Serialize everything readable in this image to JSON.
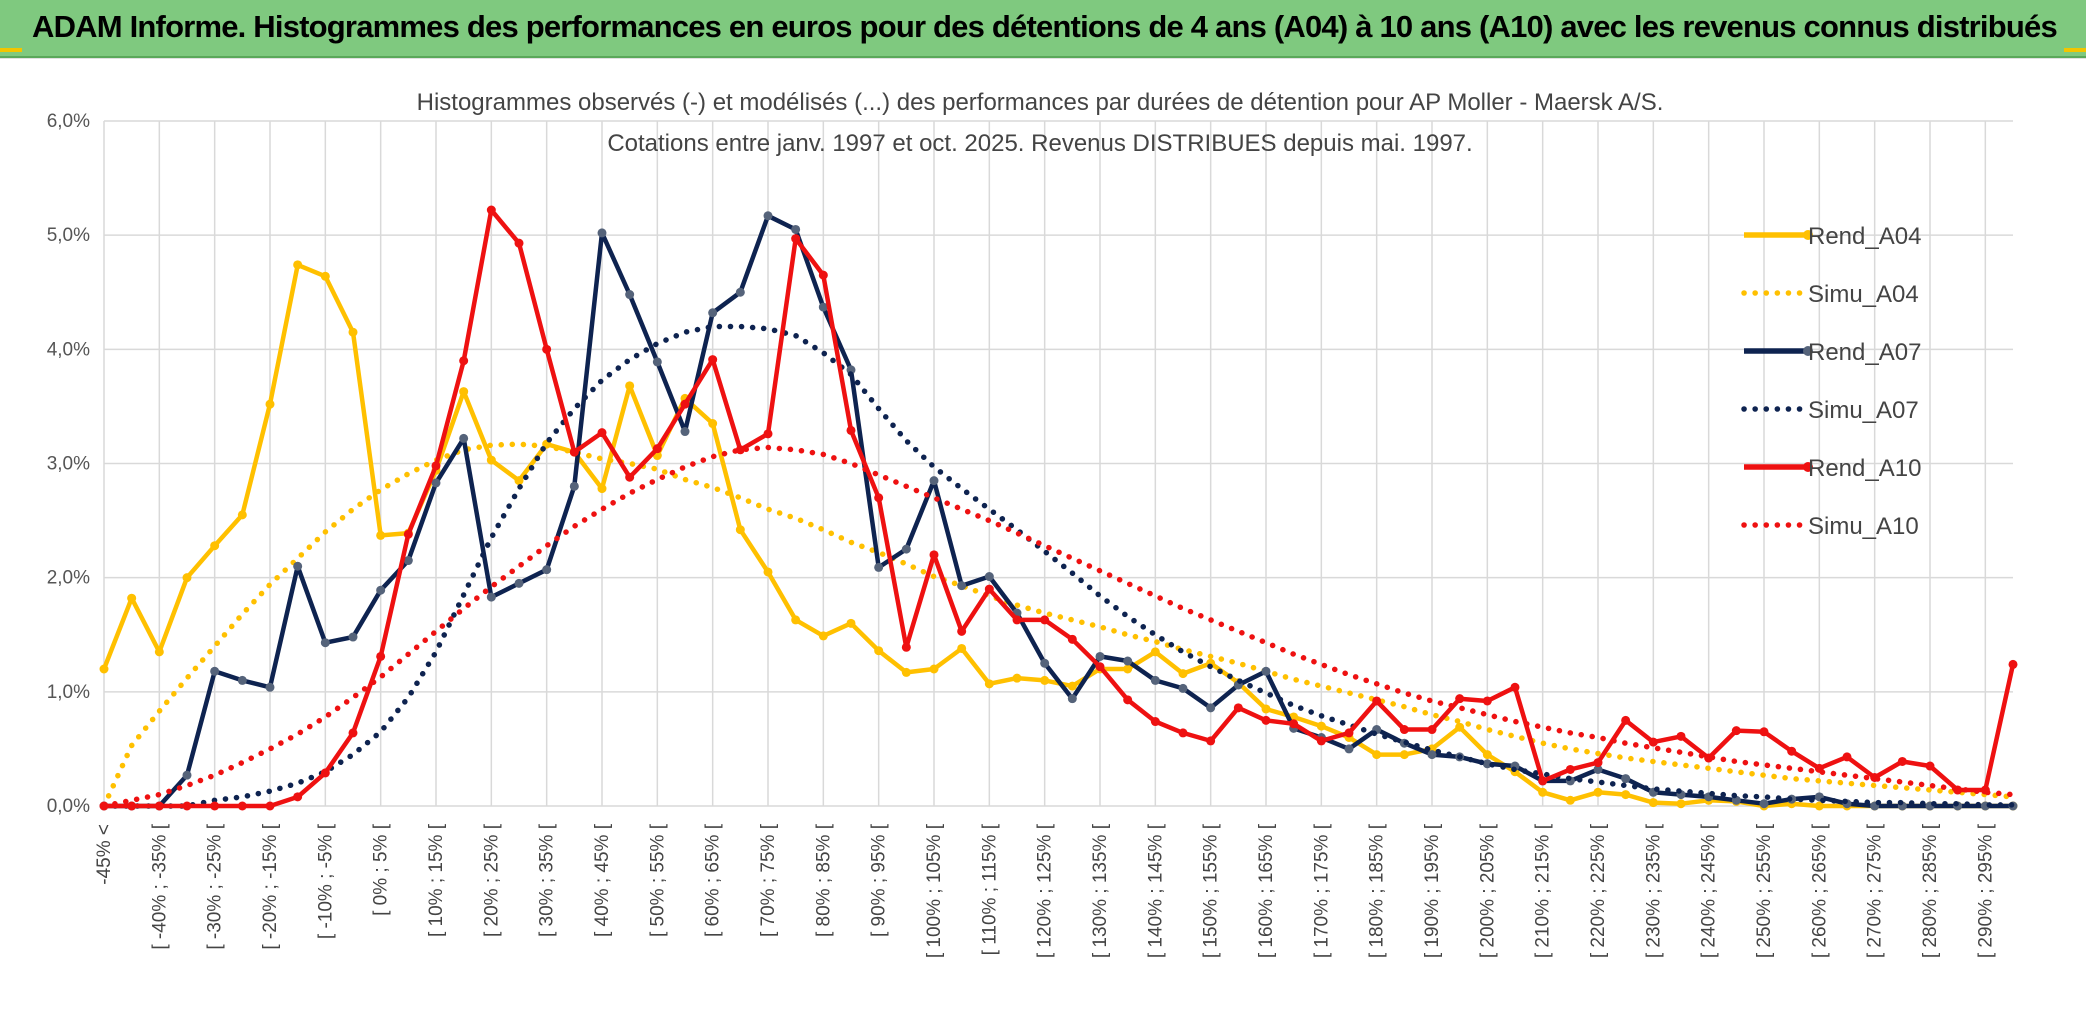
{
  "header": {
    "title": "ADAM Informe. Histogrammes des performances en euros pour des détentions de 4 ans (A04) à 10 ans (A10) avec les revenus connus distribués"
  },
  "chart_data": {
    "type": "line",
    "title_line1": "Histogrammes observés (-) et modélisés (...) des performances par durées de détention pour AP Moller - Maersk A/S.",
    "title_line2": "Cotations entre janv. 1997 et oct. 2025. Revenus DISTRIBUES depuis mai. 1997.",
    "ylim": [
      0,
      6
    ],
    "y_ticks": [
      "0,0%",
      "1,0%",
      "2,0%",
      "3,0%",
      "4,0%",
      "5,0%",
      "6,0%"
    ],
    "x_labels": [
      "-45% <",
      "[ -40% ; -35% [",
      "[ -30% ; -25% [",
      "[ -20% ; -15% [",
      "[ -10% ; -5% [",
      "[ 0% ; 5% [",
      "[ 10% ; 15% [",
      "[ 20% ; 25% [",
      "[ 30% ; 35% [",
      "[ 40% ; 45% [",
      "[ 50% ; 55% [",
      "[ 60% ; 65% [",
      "[ 70% ; 75% [",
      "[ 80% ; 85% [",
      "[ 90% ; 95% [",
      "[ 100% ; 105% [",
      "[ 110% ; 115% [",
      "[ 120% ; 125% [",
      "[ 130% ; 135% [",
      "[ 140% ; 145% [",
      "[ 150% ; 155% [",
      "[ 160% ; 165% [",
      "[ 170% ; 175% [",
      "[ 180% ; 185% [",
      "[ 190% ; 195% [",
      "[ 200% ; 205% [",
      "[ 210% ; 215% [",
      "[ 220% ; 225% [",
      "[ 230% ; 235% [",
      "[ 240% ; 245% [",
      "[ 250% ; 255% [",
      "[ 260% ; 265% [",
      "[ 270% ; 275% [",
      "[ 280% ; 285% [",
      "[ 290% ; 295% ["
    ],
    "legend_position": "right",
    "grid": true,
    "series": [
      {
        "name": "Rend_A04",
        "style": "solid",
        "color": "#ffc000",
        "values": [
          1.2,
          1.82,
          1.35,
          2.0,
          2.28,
          2.55,
          3.52,
          4.74,
          4.64,
          4.15,
          2.37,
          2.39,
          2.94,
          3.63,
          3.03,
          2.85,
          3.17,
          3.1,
          2.78,
          3.68,
          3.07,
          3.57,
          3.35,
          2.42,
          2.05,
          1.63,
          1.49,
          1.6,
          1.36,
          1.17,
          1.2,
          1.38,
          1.07,
          1.12,
          1.1,
          1.05,
          1.2,
          1.2,
          1.35,
          1.16,
          1.25,
          1.08,
          0.85,
          0.78,
          0.7,
          0.6,
          0.45,
          0.45,
          0.5,
          0.69,
          0.45,
          0.3,
          0.12,
          0.05,
          0.12,
          0.1,
          0.03,
          0.02,
          0.05,
          0.04,
          0.0,
          0.02,
          0.0,
          0.0,
          0.0,
          0.0,
          0.0,
          0.0,
          0.0,
          0.0
        ]
      },
      {
        "name": "Simu_A04",
        "style": "dotted",
        "color": "#ffc000",
        "values": [
          0.0,
          0.53,
          0.83,
          1.12,
          1.4,
          1.68,
          1.94,
          2.17,
          2.4,
          2.6,
          2.77,
          2.91,
          3.03,
          3.12,
          3.16,
          3.17,
          3.15,
          3.1,
          3.04,
          3.0,
          2.95,
          2.86,
          2.79,
          2.7,
          2.6,
          2.52,
          2.42,
          2.31,
          2.22,
          2.12,
          2.01,
          1.93,
          1.84,
          1.76,
          1.69,
          1.63,
          1.57,
          1.5,
          1.44,
          1.37,
          1.31,
          1.25,
          1.18,
          1.11,
          1.05,
          0.99,
          0.93,
          0.87,
          0.8,
          0.74,
          0.67,
          0.61,
          0.55,
          0.5,
          0.46,
          0.42,
          0.39,
          0.36,
          0.33,
          0.3,
          0.27,
          0.24,
          0.22,
          0.2,
          0.18,
          0.16,
          0.14,
          0.12,
          0.1,
          0.08
        ]
      },
      {
        "name": "Rend_A07",
        "style": "solid",
        "color": "#0e2350",
        "values": [
          0.0,
          0.0,
          0.0,
          0.27,
          1.18,
          1.1,
          1.04,
          2.1,
          1.43,
          1.48,
          1.89,
          2.15,
          2.83,
          3.22,
          1.83,
          1.95,
          2.07,
          2.8,
          5.02,
          4.48,
          3.89,
          3.28,
          4.32,
          4.5,
          5.17,
          5.05,
          4.37,
          3.82,
          2.09,
          2.25,
          2.85,
          1.93,
          2.01,
          1.69,
          1.25,
          0.94,
          1.31,
          1.27,
          1.1,
          1.03,
          0.86,
          1.06,
          1.18,
          0.68,
          0.6,
          0.5,
          0.67,
          0.55,
          0.45,
          0.43,
          0.37,
          0.35,
          0.22,
          0.22,
          0.32,
          0.24,
          0.12,
          0.1,
          0.08,
          0.05,
          0.02,
          0.06,
          0.08,
          0.02,
          0.0,
          0.0,
          0.0,
          0.0,
          0.0,
          0.0
        ]
      },
      {
        "name": "Simu_A07",
        "style": "dotted",
        "color": "#0e2350",
        "values": [
          0.0,
          0.0,
          0.0,
          0.0,
          0.05,
          0.08,
          0.13,
          0.2,
          0.3,
          0.45,
          0.65,
          0.95,
          1.35,
          1.85,
          2.35,
          2.78,
          3.18,
          3.48,
          3.73,
          3.91,
          4.05,
          4.15,
          4.2,
          4.2,
          4.18,
          4.12,
          3.97,
          3.78,
          3.48,
          3.2,
          2.97,
          2.78,
          2.6,
          2.42,
          2.23,
          2.04,
          1.84,
          1.66,
          1.5,
          1.35,
          1.22,
          1.1,
          0.99,
          0.88,
          0.79,
          0.71,
          0.63,
          0.56,
          0.49,
          0.43,
          0.37,
          0.32,
          0.28,
          0.24,
          0.21,
          0.18,
          0.15,
          0.13,
          0.11,
          0.09,
          0.08,
          0.06,
          0.05,
          0.04,
          0.03,
          0.03,
          0.02,
          0.02,
          0.01,
          0.01
        ]
      },
      {
        "name": "Rend_A10",
        "style": "solid",
        "color": "#ee1111",
        "values": [
          0.0,
          0.0,
          0.0,
          0.0,
          0.0,
          0.0,
          0.0,
          0.08,
          0.29,
          0.64,
          1.31,
          2.38,
          2.98,
          3.9,
          5.22,
          4.93,
          4.0,
          3.1,
          3.27,
          2.88,
          3.13,
          3.52,
          3.91,
          3.12,
          3.26,
          4.97,
          4.65,
          3.29,
          2.7,
          1.39,
          2.2,
          1.53,
          1.9,
          1.63,
          1.63,
          1.46,
          1.22,
          0.93,
          0.74,
          0.64,
          0.57,
          0.86,
          0.75,
          0.72,
          0.57,
          0.64,
          0.92,
          0.67,
          0.67,
          0.94,
          0.92,
          1.04,
          0.22,
          0.32,
          0.38,
          0.75,
          0.56,
          0.61,
          0.42,
          0.66,
          0.65,
          0.48,
          0.33,
          0.43,
          0.25,
          0.39,
          0.35,
          0.14,
          0.14,
          1.24
        ]
      },
      {
        "name": "Simu_A10",
        "style": "dotted",
        "color": "#ee1111",
        "values": [
          0.0,
          0.05,
          0.1,
          0.18,
          0.27,
          0.38,
          0.5,
          0.63,
          0.78,
          0.95,
          1.13,
          1.33,
          1.53,
          1.73,
          1.92,
          2.1,
          2.28,
          2.45,
          2.6,
          2.74,
          2.86,
          2.97,
          3.06,
          3.12,
          3.14,
          3.12,
          3.08,
          3.0,
          2.9,
          2.8,
          2.7,
          2.6,
          2.5,
          2.39,
          2.28,
          2.17,
          2.06,
          1.95,
          1.84,
          1.73,
          1.63,
          1.53,
          1.43,
          1.33,
          1.24,
          1.15,
          1.07,
          0.99,
          0.92,
          0.86,
          0.8,
          0.74,
          0.69,
          0.64,
          0.6,
          0.55,
          0.51,
          0.47,
          0.43,
          0.39,
          0.36,
          0.33,
          0.3,
          0.27,
          0.24,
          0.21,
          0.18,
          0.15,
          0.12,
          0.1
        ]
      }
    ]
  }
}
